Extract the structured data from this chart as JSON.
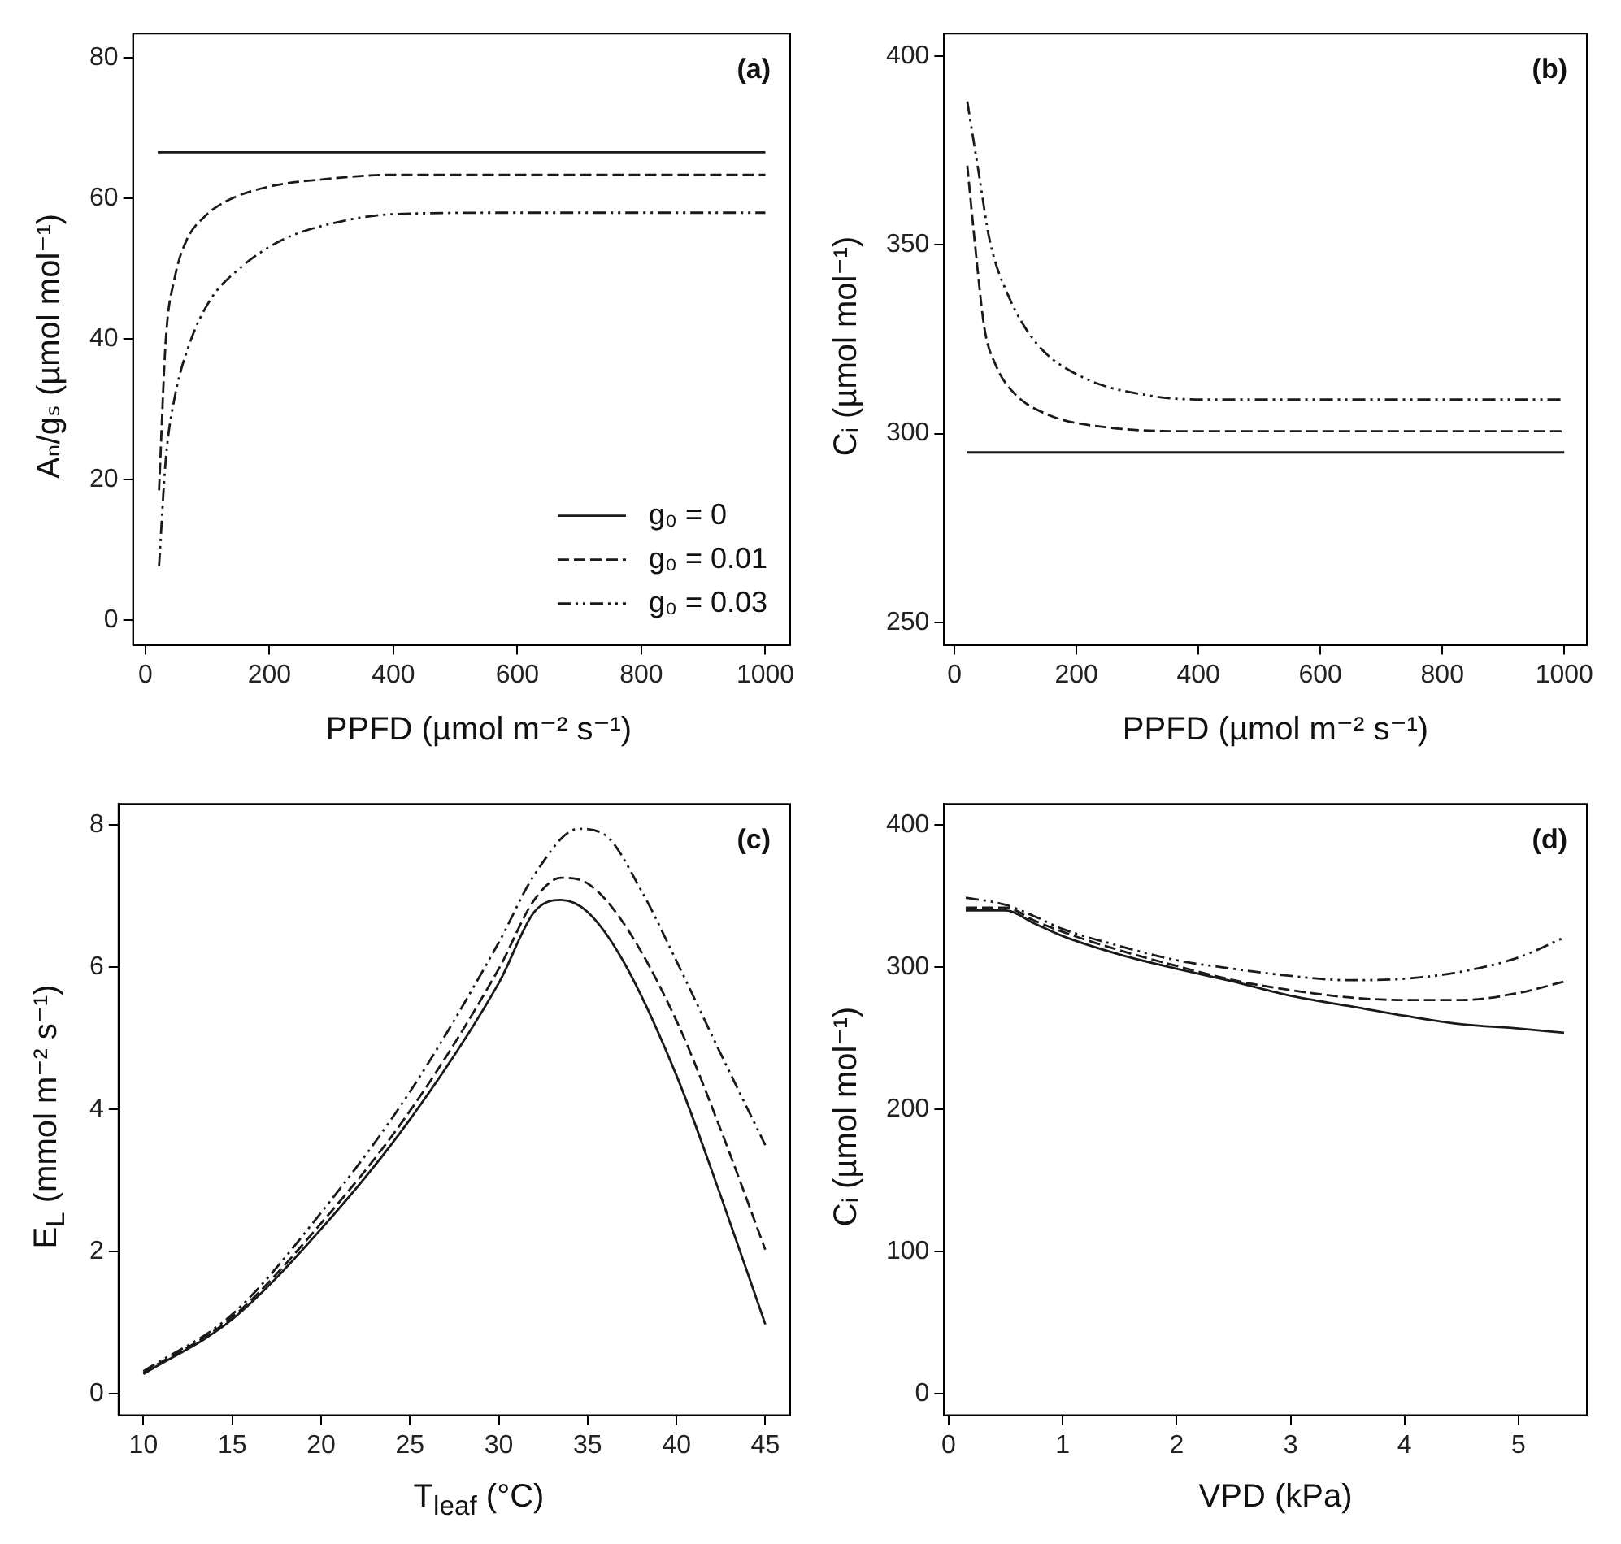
{
  "chart_data": [
    {
      "type": "line",
      "xlabel": "PPFD  (µmol m⁻² s⁻¹)",
      "ylabel": "Aₙ/gₛ  (µmol mol⁻¹)",
      "annotations": [
        "(a)"
      ],
      "legend": "bottom right",
      "xlim": [
        -20,
        1040
      ],
      "ylim": [
        -3.5,
        83.5
      ],
      "xticks": [
        0,
        200,
        400,
        600,
        800,
        1000
      ],
      "yticks": [
        0,
        20,
        40,
        60,
        80
      ],
      "series": [
        {
          "name": "g₀ = 0",
          "color": "#1a1a1a",
          "line_style": "solid",
          "x": [
            20,
            1000
          ],
          "values": [
            66.6,
            66.6
          ]
        },
        {
          "name": "g₀ = 0.01",
          "color": "#1a1a1a",
          "line_style": "dashed",
          "x": [
            22,
            33,
            47,
            66,
            95,
            132,
            199,
            293,
            402,
            600,
            800,
            1000
          ],
          "values": [
            18.5,
            40,
            48.6,
            54,
            57.4,
            59.7,
            61.7,
            62.8,
            63.4,
            63.4,
            63.4,
            63.4
          ]
        },
        {
          "name": "g₀ = 0.03",
          "color": "#1a1a1a",
          "line_style": "dotted",
          "x": [
            22,
            33,
            47,
            71,
            104,
            151,
            218,
            293,
            402,
            600,
            800,
            1000
          ],
          "values": [
            7.7,
            23,
            31.6,
            39.3,
            45.5,
            50,
            54,
            56.3,
            57.8,
            58,
            58,
            58
          ]
        }
      ]
    },
    {
      "type": "line",
      "xlabel": "PPFD  (µmol m⁻² s⁻¹)",
      "ylabel": "Cᵢ  (µmol mol⁻¹)",
      "annotations": [
        "(b)"
      ],
      "xlim": [
        -17,
        1037
      ],
      "ylim": [
        244,
        406
      ],
      "xticks": [
        0,
        200,
        400,
        600,
        800,
        1000
      ],
      "yticks": [
        250,
        300,
        350,
        400
      ],
      "series": [
        {
          "color": "#1a1a1a",
          "line_style": "solid",
          "x": [
            20,
            1000
          ],
          "values": [
            295,
            295
          ]
        },
        {
          "color": "#1a1a1a",
          "line_style": "dashed",
          "x": [
            21,
            35,
            49,
            68,
            96,
            153,
            247,
            397,
            600,
            800,
            1000
          ],
          "values": [
            371,
            348,
            328,
            318,
            311,
            305,
            301.7,
            300.6,
            300.6,
            300.6,
            300.6
          ]
        },
        {
          "color": "#1a1a1a",
          "line_style": "dotted",
          "x": [
            21,
            40,
            58,
            87,
            134,
            209,
            322,
            416,
            600,
            800,
            1000
          ],
          "values": [
            388,
            368.8,
            351,
            337,
            324,
            315,
            310,
            309,
            309,
            309,
            309
          ]
        }
      ]
    },
    {
      "type": "line",
      "xlabel": "T$_{leaf}$  (°C)",
      "ylabel": "E$_{L}$  (mmol m⁻² s⁻¹)",
      "annotations": [
        "(c)"
      ],
      "xlim": [
        8.6,
        46.4
      ],
      "ylim": [
        -0.3,
        8.3
      ],
      "xticks": [
        10,
        15,
        20,
        25,
        30,
        35,
        40,
        45
      ],
      "yticks": [
        0,
        2,
        4,
        6,
        8
      ],
      "series": [
        {
          "color": "#1a1a1a",
          "line_style": "solid",
          "x": [
            10,
            15,
            20,
            25,
            30,
            32,
            33.5,
            35,
            37,
            40,
            42.5,
            45
          ],
          "values": [
            0.28,
            1.05,
            2.32,
            3.86,
            5.78,
            6.78,
            6.95,
            6.78,
            6.09,
            4.48,
            2.78,
            0.98
          ]
        },
        {
          "color": "#1a1a1a",
          "line_style": "dashed",
          "x": [
            10,
            15,
            20,
            25,
            30,
            32,
            33.5,
            35,
            37,
            40,
            42.5,
            45
          ],
          "values": [
            0.3,
            1.08,
            2.4,
            3.98,
            5.98,
            6.95,
            7.26,
            7.18,
            6.63,
            5.25,
            3.71,
            2.03
          ]
        },
        {
          "color": "#1a1a1a",
          "line_style": "dotted",
          "x": [
            10,
            15,
            20,
            25,
            30,
            32,
            34.5,
            36,
            38,
            40,
            42.5,
            45
          ],
          "values": [
            0.32,
            1.12,
            2.55,
            4.25,
            6.35,
            7.3,
            7.95,
            7.86,
            7.09,
            6.09,
            4.78,
            3.5
          ]
        }
      ]
    },
    {
      "type": "line",
      "xlabel": "VPD (kPa)",
      "ylabel": "Cᵢ  (µmol mol⁻¹)",
      "annotations": [
        "(d)"
      ],
      "xlim": [
        -0.04,
        5.6
      ],
      "ylim": [
        -15,
        415
      ],
      "xticks": [
        0,
        1,
        2,
        3,
        4,
        5
      ],
      "yticks": [
        0,
        100,
        200,
        300,
        400
      ],
      "series": [
        {
          "color": "#1a1a1a",
          "line_style": "solid",
          "x": [
            0.15,
            0.5,
            0.75,
            1,
            1.5,
            2,
            2.5,
            3,
            3.5,
            4,
            4.5,
            5,
            5.4
          ],
          "values": [
            340,
            340,
            331,
            322,
            309,
            299,
            290,
            280,
            273,
            266,
            260,
            257,
            254
          ]
        },
        {
          "color": "#1a1a1a",
          "line_style": "dashed",
          "x": [
            0.15,
            0.5,
            0.75,
            1,
            1.5,
            2,
            2.5,
            3,
            3.5,
            4,
            4.5,
            5,
            5.4
          ],
          "values": [
            342,
            342,
            333,
            325,
            312,
            301,
            291,
            284,
            279,
            277,
            277,
            282,
            290
          ]
        },
        {
          "color": "#1a1a1a",
          "line_style": "dotted",
          "x": [
            0.15,
            0.5,
            0.75,
            1,
            1.5,
            2,
            2.5,
            3,
            3.5,
            4,
            4.5,
            5,
            5.4
          ],
          "values": [
            349,
            344,
            336,
            327,
            315,
            305,
            299,
            294,
            291,
            292,
            297,
            307,
            321
          ]
        }
      ]
    }
  ]
}
